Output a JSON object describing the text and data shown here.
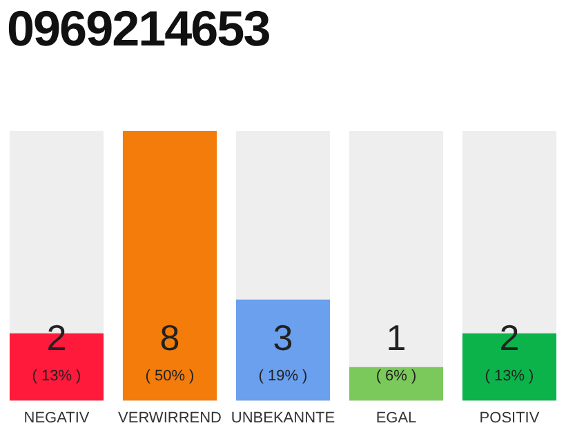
{
  "chart_data": {
    "type": "bar",
    "title": "0969214653",
    "categories": [
      "NEGATIV",
      "VERWIRREND",
      "UNBEKANNTE",
      "EGAL",
      "POSITIV"
    ],
    "values": [
      2,
      8,
      3,
      1,
      2
    ],
    "colors": [
      "#ff1a3c",
      "#f47c0a",
      "#6aa0ee",
      "#7bc95b",
      "#0bb34a"
    ],
    "ylim": [
      0,
      8
    ],
    "tick_labels": "x",
    "grid": false,
    "legend": false,
    "data_labels": true,
    "annotations": [
      "( 13% )",
      "( 50% )",
      "( 19% )",
      "( 6% )",
      "( 13% )"
    ]
  }
}
